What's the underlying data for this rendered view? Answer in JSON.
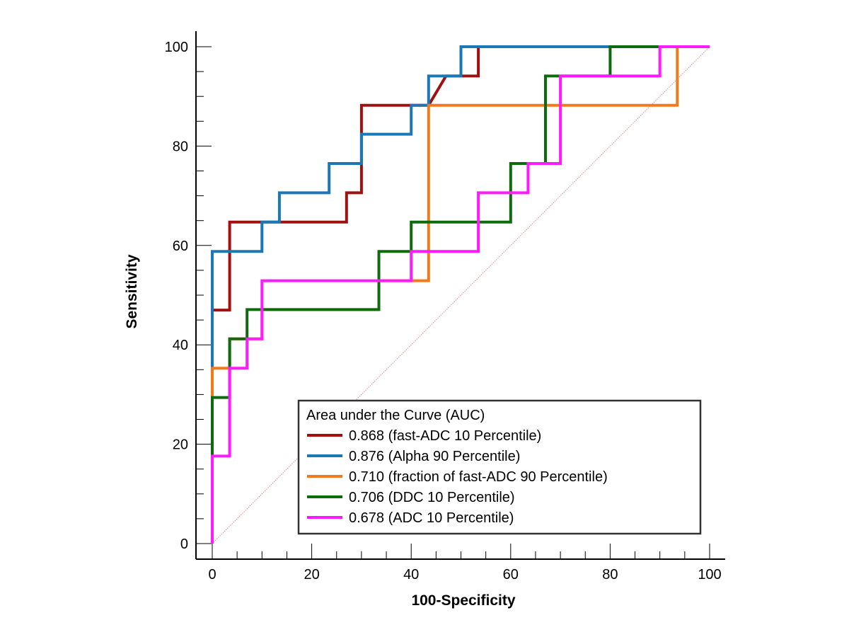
{
  "chart_data": {
    "type": "line",
    "xlabel": "100-Specificity",
    "ylabel": "Sensitivity",
    "xlim": [
      0,
      100
    ],
    "ylim": [
      0,
      100
    ],
    "xticks": [
      0,
      20,
      40,
      60,
      80,
      100
    ],
    "yticks": [
      0,
      20,
      40,
      60,
      80,
      100
    ],
    "legend_title": "Area under the Curve (AUC)",
    "legend_position": "bottom-right",
    "reference_line": {
      "x": [
        0,
        100
      ],
      "y": [
        0,
        100
      ],
      "color": "#e0808a",
      "style": "dotted"
    },
    "series": [
      {
        "name": "0.868 (fast-ADC 10 Percentile)",
        "color": "#a01010",
        "x": [
          0,
          0,
          3.5,
          3.5,
          27,
          27,
          30,
          30,
          43.5,
          47,
          53.5,
          53.5,
          100
        ],
        "y": [
          0,
          47,
          47,
          64.7,
          64.7,
          70.6,
          70.6,
          88.2,
          88.2,
          94.1,
          94.1,
          100,
          100
        ]
      },
      {
        "name": "0.876 (Alpha 90 Percentile)",
        "color": "#1a78b8",
        "x": [
          0,
          0,
          10,
          10,
          13.5,
          13.5,
          23.5,
          23.5,
          30,
          30,
          40,
          40,
          43.5,
          43.5,
          50,
          50,
          100
        ],
        "y": [
          0,
          58.8,
          58.8,
          64.7,
          64.7,
          70.6,
          70.6,
          76.5,
          76.5,
          82.4,
          82.4,
          88.2,
          88.2,
          94.1,
          94.1,
          100,
          100
        ]
      },
      {
        "name": "0.710 (fraction of fast-ADC 90 Percentile)",
        "color": "#f27a1a",
        "x": [
          0,
          0,
          0,
          3.5,
          3.5,
          10,
          10,
          33.5,
          33.5,
          43.5,
          43.5,
          93.5,
          93.5,
          100
        ],
        "y": [
          0,
          29.4,
          35.3,
          35.3,
          41.2,
          41.2,
          47.1,
          47.1,
          52.9,
          52.9,
          88.2,
          88.2,
          100,
          100
        ]
      },
      {
        "name": "0.706 (DDC 10 Percentile)",
        "color": "#0d6b0d",
        "x": [
          0,
          0,
          3.5,
          3.5,
          7,
          7,
          33.5,
          33.5,
          40,
          40,
          60,
          60,
          63.5,
          63.5,
          67,
          67,
          80,
          80,
          100
        ],
        "y": [
          0,
          29.4,
          29.4,
          41.2,
          41.2,
          47.1,
          47.1,
          58.8,
          58.8,
          64.7,
          64.7,
          76.5,
          76.5,
          76.5,
          76.5,
          94.1,
          94.1,
          100,
          100
        ]
      },
      {
        "name": "0.678 (ADC 10 Percentile)",
        "color": "#ff1aff",
        "x": [
          0,
          0,
          3.5,
          3.5,
          7,
          7,
          10,
          10,
          40,
          40,
          53.5,
          53.5,
          60,
          60,
          63.5,
          63.5,
          70,
          70,
          90,
          90,
          100
        ],
        "y": [
          0,
          17.6,
          17.6,
          35.3,
          35.3,
          41.2,
          41.2,
          52.9,
          52.9,
          58.8,
          58.8,
          70.6,
          70.6,
          70.6,
          70.6,
          76.5,
          76.5,
          94.1,
          94.1,
          100,
          100
        ]
      }
    ]
  }
}
